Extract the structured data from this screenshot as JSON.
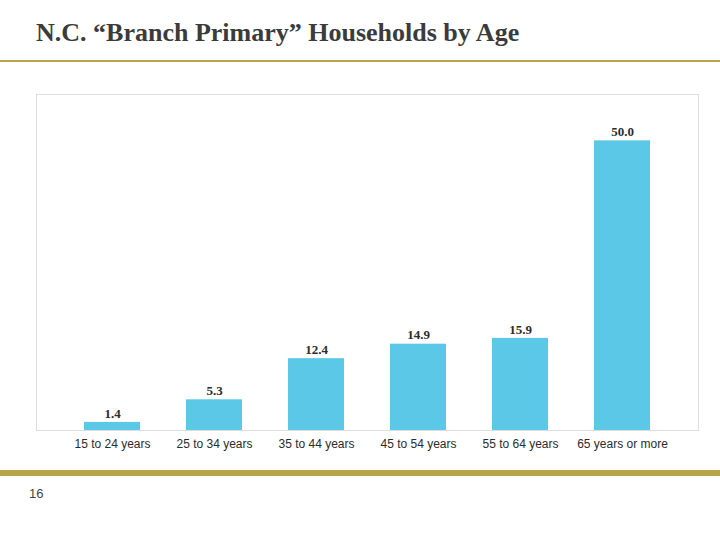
{
  "chart_data": {
    "type": "bar",
    "title": "N.C. “Branch Primary” Households by Age",
    "caption": "16",
    "categories": [
      "15 to 24 years",
      "25 to 34 years",
      "35 to 44 years",
      "45 to 54 years",
      "55 to 64 years",
      "65 years or more"
    ],
    "values": [
      1.4,
      5.3,
      12.4,
      14.9,
      15.9,
      50.0
    ],
    "value_labels": [
      "1.4",
      "5.3",
      "12.4",
      "14.9",
      "15.9",
      "50.0"
    ],
    "color": "#5BC8E8",
    "ylim": [
      0,
      58
    ],
    "grid": false,
    "data_labels": true,
    "tick_labels": "x"
  }
}
